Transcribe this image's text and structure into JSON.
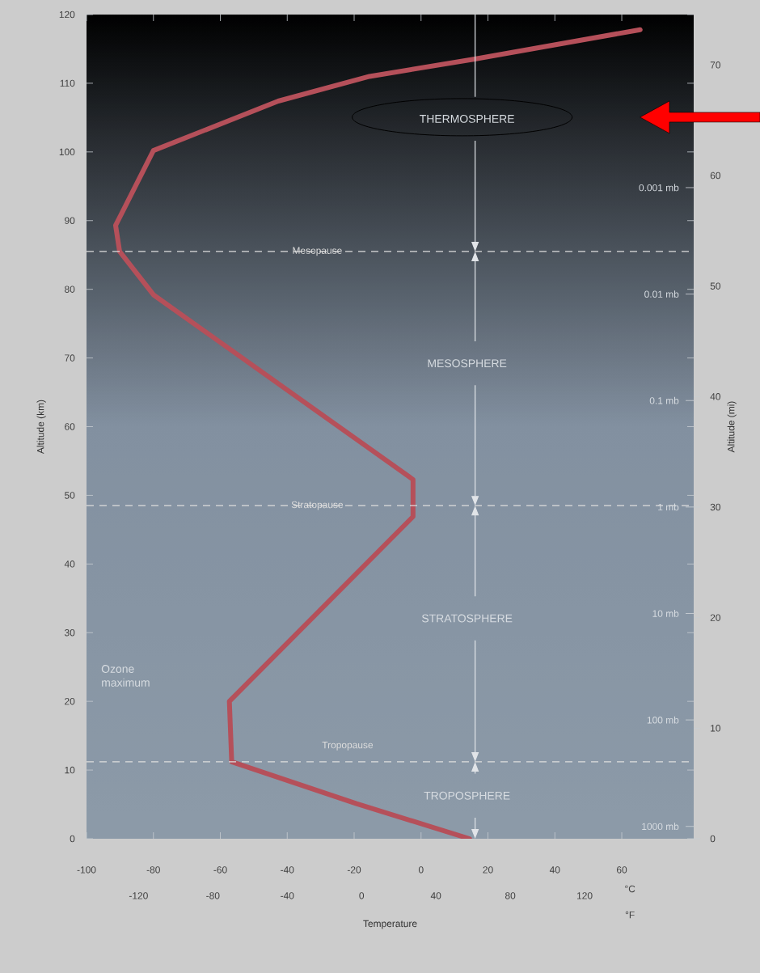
{
  "chart_data": {
    "type": "line",
    "xlabel": "Temperature",
    "ylabel": "Altitude (km)",
    "y2label": "Altitude (mi)",
    "series": [
      {
        "color": "#b5505a",
        "x": [
          14.5,
          -19.3,
          -56.6,
          -57.3,
          -2.4,
          -2.4,
          -80,
          -90.1,
          -91.3,
          -80,
          -42.7,
          -15.4,
          15.7,
          65.5
        ],
        "values": [
          0,
          5.1,
          11.2,
          20,
          46.9,
          52.3,
          79.2,
          85.5,
          89.3,
          100.2,
          107.4,
          111,
          113.5,
          117.8
        ]
      }
    ],
    "xlim": [
      -100,
      81.5
    ],
    "xticks": [
      -100,
      -80,
      -60,
      -40,
      -20,
      0,
      20,
      40,
      60
    ],
    "x2lim": [
      -148,
      178.7
    ],
    "x2ticks": [
      -120,
      -80,
      -40,
      0,
      40,
      80,
      120
    ],
    "ylim": [
      0,
      120
    ],
    "yticks": [
      0,
      10,
      20,
      30,
      40,
      50,
      60,
      70,
      80,
      90,
      100,
      110,
      120
    ],
    "y2lim": [
      0,
      74.56
    ],
    "y2ticks": [
      0,
      10,
      20,
      30,
      40,
      50,
      60,
      70
    ],
    "y3lim": [
      1306,
      2.37e-05
    ],
    "y3ticks": [
      {
        "value": 0.001,
        "label": "0.001 mb"
      },
      {
        "value": 0.01,
        "label": "0.01 mb"
      },
      {
        "value": 0.1,
        "label": "0.1 mb"
      },
      {
        "value": 1,
        "label": "1 mb"
      },
      {
        "value": 10,
        "label": "10 mb"
      },
      {
        "value": 100,
        "label": "100 mb"
      },
      {
        "value": 1000,
        "label": "1000 mb"
      }
    ],
    "log": "y3",
    "ref_lines": [
      {
        "axis": "y",
        "value": 85.5,
        "label": "Mesopause",
        "color": "#dddddd",
        "line_style": "dashed"
      },
      {
        "axis": "y",
        "value": 48.5,
        "label": "Stratopause",
        "color": "#dddddd",
        "line_style": "dashed"
      },
      {
        "axis": "y",
        "value": 11.2,
        "label": "Tropopause",
        "color": "#dddddd",
        "line_style": "dashed"
      }
    ],
    "annotations": [
      "THERMOSPHERE",
      "MESOSPHERE",
      "STRATOSPHERE",
      "TROPOSPHERE",
      "Ozone maximum",
      "°C",
      "°F"
    ],
    "grid": false,
    "marker": "none",
    "line_style": "solid"
  }
}
